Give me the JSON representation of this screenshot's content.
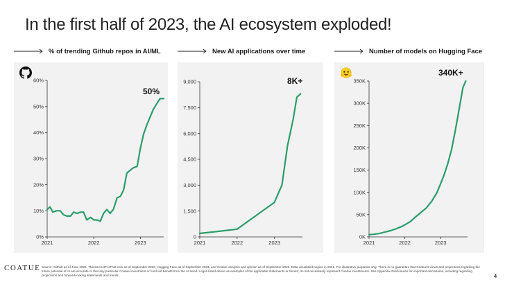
{
  "title": "In the first half of 2023, the AI ecosystem exploded!",
  "footer": {
    "logo": "COATUE",
    "note": "Source: Github as of June 2023, TheresAnAIForThat.com as of September 2023, Hugging Face as of September 2023, and Coatue analysis and opinion as of September 2023. Data visualized begins in 2021. For illustrative purposes only. There is no guarantee that Coatue's views and projections regarding the future potential of AI are accurate or that any particular Coatue investment or fund will benefit from the AI trend. Logos listed above as examples of the applicable statements or trends; do not necessarily represent Coatue investments. See Appendix-Disclosures for important disclosures, including regarding projections and forward-looking statements and trends.",
    "page": "4"
  },
  "colors": {
    "line": "#2a9d6a",
    "panel": "#f2f2f2",
    "axis": "#333333"
  },
  "chart_data": [
    {
      "type": "line",
      "title": "% of trending Github repos in AI/ML",
      "icon": "github-icon",
      "callout": "50%",
      "x_ticks": [
        "2021",
        "2022",
        "2023"
      ],
      "y_ticks": [
        "0%",
        "10%",
        "20%",
        "30%",
        "40%",
        "50%",
        "60%"
      ],
      "xlim": [
        2021.0,
        2023.5
      ],
      "ylim": [
        0,
        60
      ],
      "x": [
        2021.0,
        2021.06,
        2021.12,
        2021.2,
        2021.28,
        2021.35,
        2021.42,
        2021.5,
        2021.57,
        2021.64,
        2021.72,
        2021.78,
        2021.85,
        2021.93,
        2022.0,
        2022.07,
        2022.14,
        2022.21,
        2022.28,
        2022.35,
        2022.42,
        2022.5,
        2022.57,
        2022.64,
        2022.71,
        2022.78,
        2022.85,
        2022.93,
        2023.0,
        2023.07,
        2023.14,
        2023.21,
        2023.28,
        2023.35,
        2023.42,
        2023.5
      ],
      "values": [
        10.5,
        11.5,
        9.5,
        10,
        10,
        8.5,
        8,
        8,
        9.5,
        9,
        9.5,
        9.5,
        6.5,
        7.5,
        6.5,
        6.5,
        6,
        9,
        10.5,
        9,
        10.5,
        15,
        15.5,
        18,
        24.5,
        25.5,
        26.5,
        27,
        34,
        39.5,
        43,
        46,
        49,
        51,
        53,
        53
      ]
    },
    {
      "type": "line",
      "title": "New AI applications over time",
      "callout": "8K+",
      "x_ticks": [
        "2021",
        "2022",
        "2023"
      ],
      "y_ticks": [
        "0",
        "1,500",
        "3,000",
        "4,500",
        "6,000",
        "7,500",
        "9,000"
      ],
      "xlim": [
        2021.0,
        2023.75
      ],
      "ylim": [
        0,
        9000
      ],
      "x": [
        2021.0,
        2021.5,
        2022.0,
        2023.0,
        2023.2,
        2023.35,
        2023.5,
        2023.6,
        2023.7
      ],
      "values": [
        200,
        320,
        450,
        2000,
        3000,
        5300,
        6800,
        8100,
        8300
      ]
    },
    {
      "type": "line",
      "title": "Number of models on Hugging Face",
      "icon": "hugging-face-icon",
      "callout": "340K+",
      "x_ticks": [
        "2021",
        "2022",
        "2023"
      ],
      "y_ticks": [
        "0K",
        "50K",
        "100K",
        "150K",
        "200K",
        "250K",
        "300K",
        "350K"
      ],
      "xlim": [
        2021.0,
        2023.75
      ],
      "ylim": [
        0,
        350
      ],
      "x": [
        2021.0,
        2021.15,
        2021.3,
        2021.45,
        2021.6,
        2021.75,
        2021.9,
        2022.0,
        2022.15,
        2022.3,
        2022.45,
        2022.6,
        2022.75,
        2022.9,
        2023.0,
        2023.1,
        2023.2,
        2023.3,
        2023.4,
        2023.5,
        2023.62,
        2023.7
      ],
      "values": [
        5,
        6,
        8,
        11,
        14,
        18,
        23,
        27,
        34,
        45,
        55,
        65,
        80,
        100,
        120,
        140,
        165,
        195,
        235,
        280,
        335,
        350
      ]
    }
  ]
}
